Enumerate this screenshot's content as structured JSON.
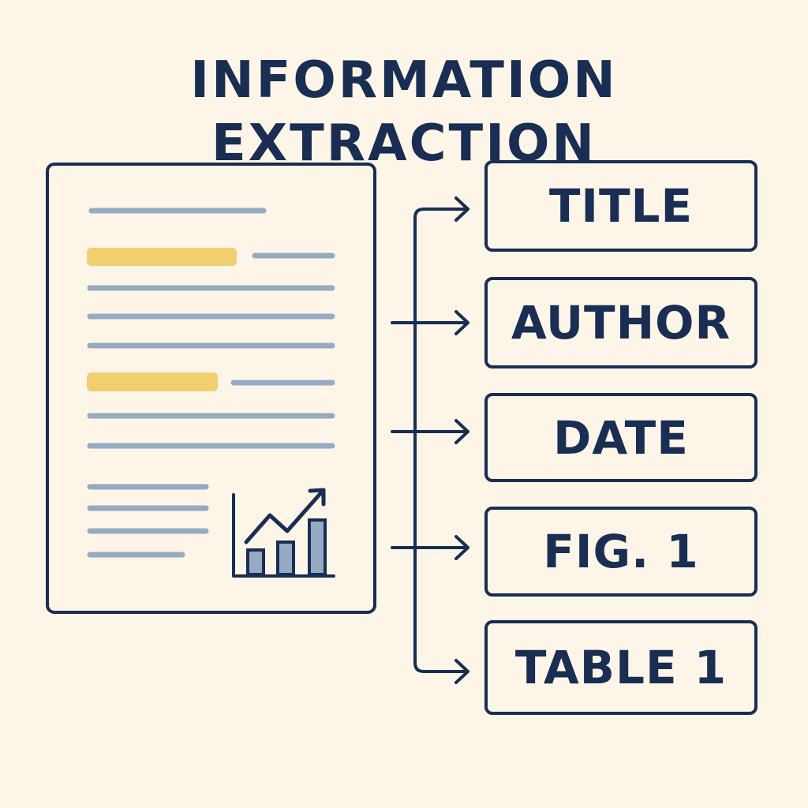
{
  "title": "INFORMATION EXTRACTION",
  "fields": [
    {
      "label": "TITLE"
    },
    {
      "label": "AUTHOR"
    },
    {
      "label": "DATE"
    },
    {
      "label": "FIG. 1"
    },
    {
      "label": "TABLE 1"
    }
  ],
  "colors": {
    "background": "#fdf5e8",
    "ink": "#1a2d52",
    "text_line": "#95abc4",
    "highlight": "#f1cf6f",
    "chart_bar": "#95abc4"
  },
  "icons": {
    "document": "document-icon",
    "chart": "bar-chart-trend-icon",
    "arrow": "right-arrow-icon"
  }
}
